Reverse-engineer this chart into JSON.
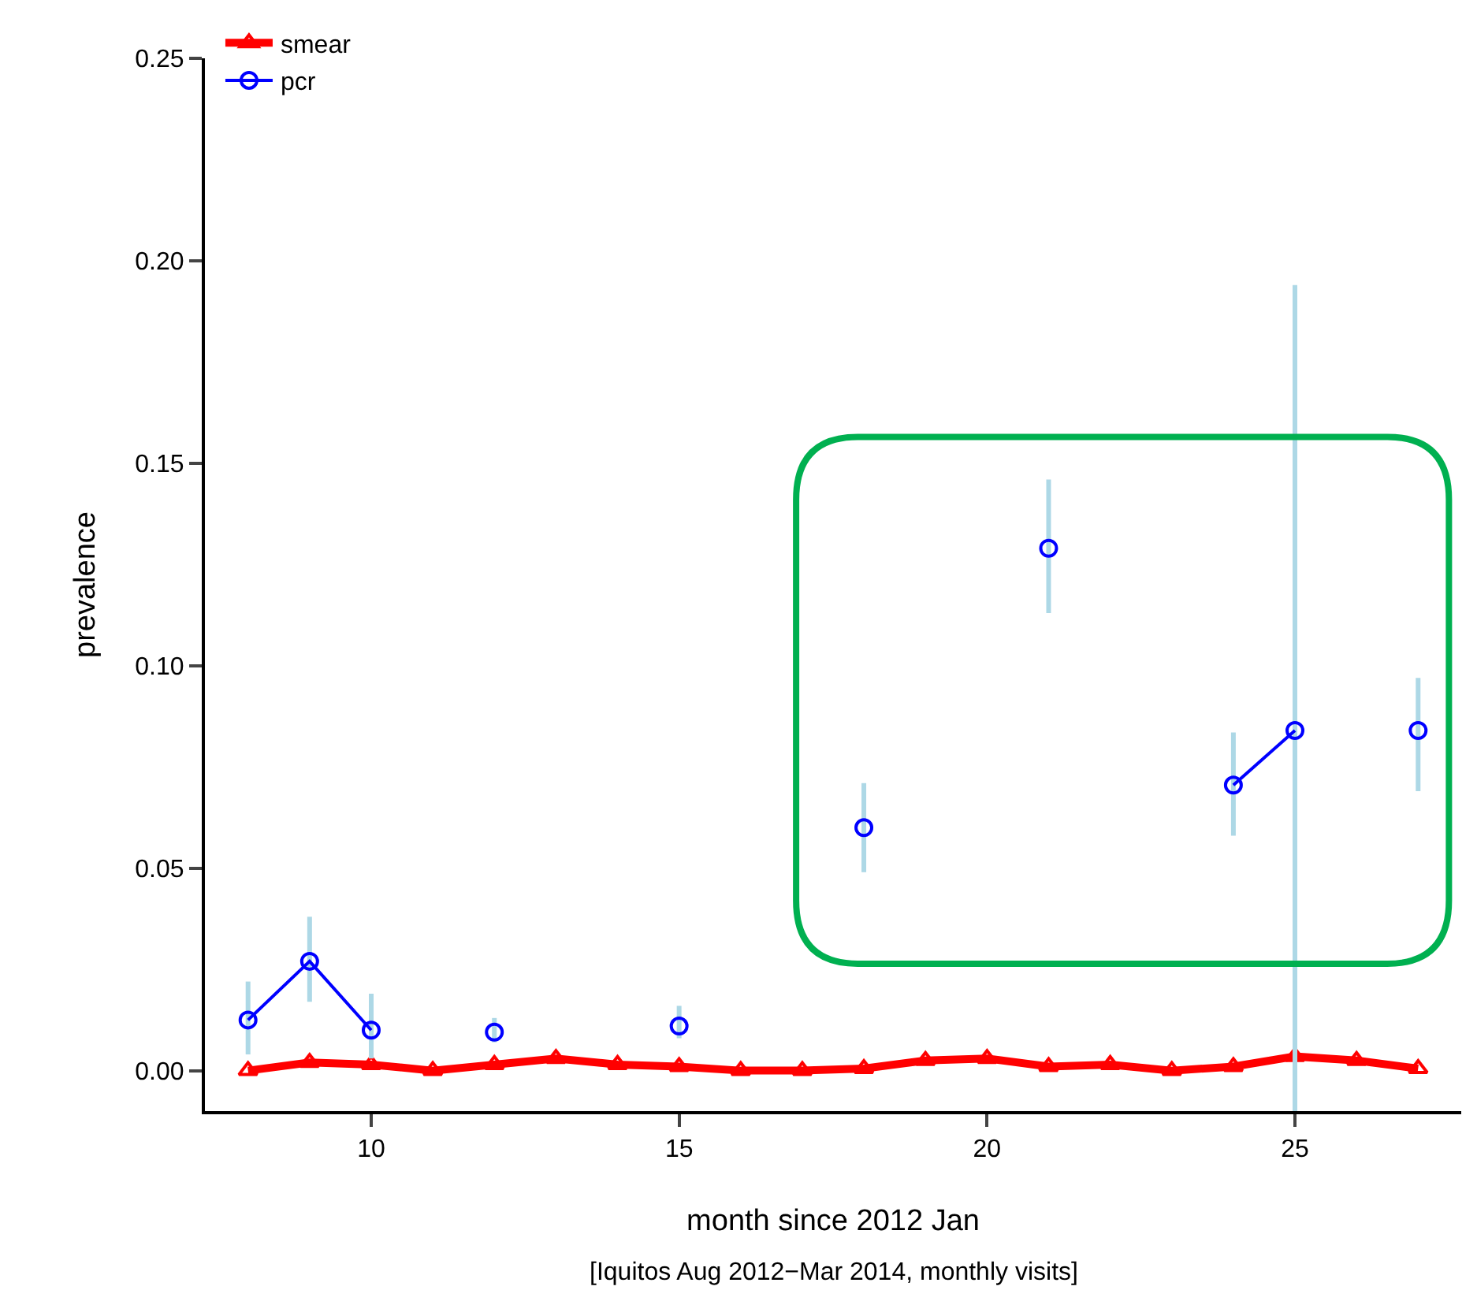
{
  "chart_data": {
    "type": "line",
    "xlabel": "month since 2012 Jan",
    "ylabel": "prevalence",
    "annotations": [
      "[Iquitos Aug 2012−Mar 2014, monthly visits]"
    ],
    "x": [
      8,
      9,
      10,
      11,
      12,
      13,
      14,
      15,
      16,
      17,
      18,
      19,
      20,
      21,
      22,
      23,
      24,
      25,
      26,
      27
    ],
    "series": [
      {
        "name": "smear",
        "color": "#ff0000",
        "marker": "triangle",
        "values": [
          0.0,
          0.002,
          0.0015,
          0.0,
          0.0015,
          0.003,
          0.0015,
          0.001,
          0.0,
          0.0,
          0.0005,
          0.0025,
          0.003,
          0.001,
          0.0015,
          0.0,
          0.001,
          0.0035,
          0.0025,
          0.0005
        ]
      },
      {
        "name": "pcr",
        "color": "#0000ff",
        "marker": "circle",
        "values": [
          0.0125,
          0.027,
          0.01,
          null,
          0.0095,
          null,
          null,
          0.011,
          null,
          null,
          0.06,
          null,
          null,
          0.129,
          null,
          null,
          0.0705,
          0.084,
          null,
          0.084
        ],
        "errors": [
          [
            0.004,
            0.022
          ],
          [
            0.017,
            0.038
          ],
          [
            0.003,
            0.019
          ],
          null,
          [
            0.007,
            0.013
          ],
          null,
          null,
          [
            0.008,
            0.016
          ],
          null,
          null,
          [
            0.049,
            0.071
          ],
          null,
          null,
          [
            0.113,
            0.146
          ],
          null,
          null,
          [
            0.058,
            0.0835
          ],
          [
            -0.01,
            0.194
          ],
          null,
          [
            0.069,
            0.097
          ]
        ]
      }
    ],
    "xlim": [
      7.3,
      27.7
    ],
    "xticks": [
      10,
      15,
      20,
      25
    ],
    "ylim": [
      -0.01,
      0.25
    ],
    "yticks": [
      {
        "value": 0,
        "label": "0.00"
      },
      {
        "value": 0.05,
        "label": "0.05"
      },
      {
        "value": 0.1,
        "label": "0.10"
      },
      {
        "value": 0.15,
        "label": "0.15"
      },
      {
        "value": 0.2,
        "label": "0.20"
      },
      {
        "value": 0.25,
        "label": "0.25"
      }
    ],
    "legend": "top left",
    "line_style": "solid"
  }
}
